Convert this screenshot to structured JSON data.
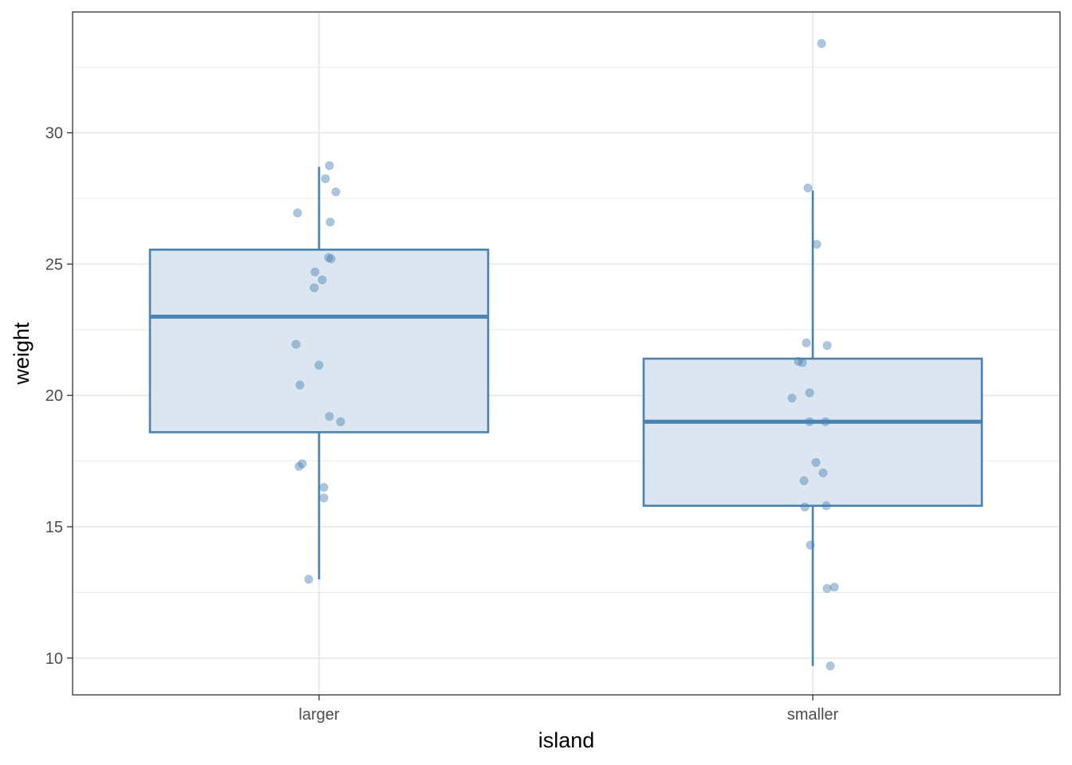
{
  "chart_data": {
    "type": "boxplot",
    "xlabel": "island",
    "ylabel": "weight",
    "categories": [
      "larger",
      "smaller"
    ],
    "ylim": [
      8.6,
      34.6
    ],
    "yticks": [
      10,
      15,
      20,
      25,
      30
    ],
    "grid": true,
    "colors": {
      "box_stroke": "#4682b4",
      "box_fill": "#dce6f0",
      "point": "#4682b4",
      "grid": "#ebebeb",
      "panel_border": "#333333"
    },
    "boxes": [
      {
        "category": "larger",
        "whisker_low": 13.0,
        "q1": 18.6,
        "median": 23.0,
        "q3": 25.55,
        "whisker_high": 28.7
      },
      {
        "category": "smaller",
        "whisker_low": 9.7,
        "q1": 15.8,
        "median": 19.0,
        "q3": 21.4,
        "whisker_high": 27.8
      }
    ],
    "points": [
      {
        "category": "larger",
        "values": [
          28.75,
          28.25,
          27.75,
          26.95,
          26.6,
          25.25,
          25.2,
          24.7,
          24.4,
          24.1,
          21.95,
          21.15,
          20.4,
          19.2,
          19.0,
          17.4,
          17.3,
          16.5,
          16.1,
          13.0
        ]
      },
      {
        "category": "smaller",
        "values": [
          33.4,
          27.9,
          25.75,
          22.0,
          21.9,
          21.3,
          21.25,
          20.1,
          19.9,
          19.0,
          19.0,
          17.45,
          17.05,
          16.75,
          15.8,
          15.75,
          14.3,
          12.7,
          12.65,
          9.7
        ]
      }
    ]
  }
}
